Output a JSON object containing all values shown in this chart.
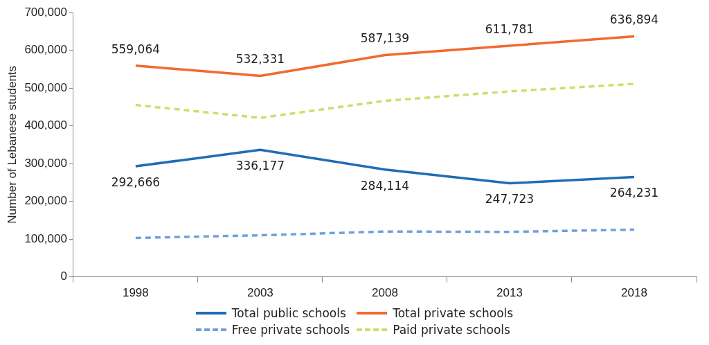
{
  "chart_data": {
    "type": "line",
    "ylabel": "Number of Lebanese students",
    "categories": [
      "1998",
      "2003",
      "2008",
      "2013",
      "2018"
    ],
    "ylim": [
      0,
      700000
    ],
    "yticks": [
      0,
      {
        "value": 100000,
        "label": "100,000"
      },
      {
        "value": 200000,
        "label": "200,000"
      },
      {
        "value": 300000,
        "label": "300,000"
      },
      {
        "value": 400000,
        "label": "400,000"
      },
      {
        "value": 500000,
        "label": "500,000"
      },
      {
        "value": 600000,
        "label": "600,000"
      },
      {
        "value": 700000,
        "label": "700,000"
      }
    ],
    "grid": false,
    "legend": "bottom",
    "marker": "none",
    "series": [
      {
        "name": "Total public schools",
        "color": "#1f6db5",
        "line_style": "solid",
        "values": [
          292666,
          336177,
          284114,
          247723,
          264231
        ],
        "value_labels": [
          "292,666",
          "336,177",
          "284,114",
          "247,723",
          "264,231"
        ]
      },
      {
        "name": "Total private schools",
        "color": "#f26a2e",
        "line_style": "solid",
        "values": [
          559064,
          532331,
          587139,
          611781,
          636894
        ],
        "value_labels": [
          "559,064",
          "532,331",
          "587,139",
          "611,781",
          "636,894"
        ]
      },
      {
        "name": "Free private schools",
        "color": "#6fa0dc",
        "line_style": "dashed",
        "values": [
          103000,
          110000,
          120000,
          119000,
          125000
        ]
      },
      {
        "name": "Paid private schools",
        "color": "#d4db6a",
        "line_style": "dashed",
        "values": [
          455000,
          421000,
          466000,
          491000,
          511000
        ]
      }
    ]
  }
}
